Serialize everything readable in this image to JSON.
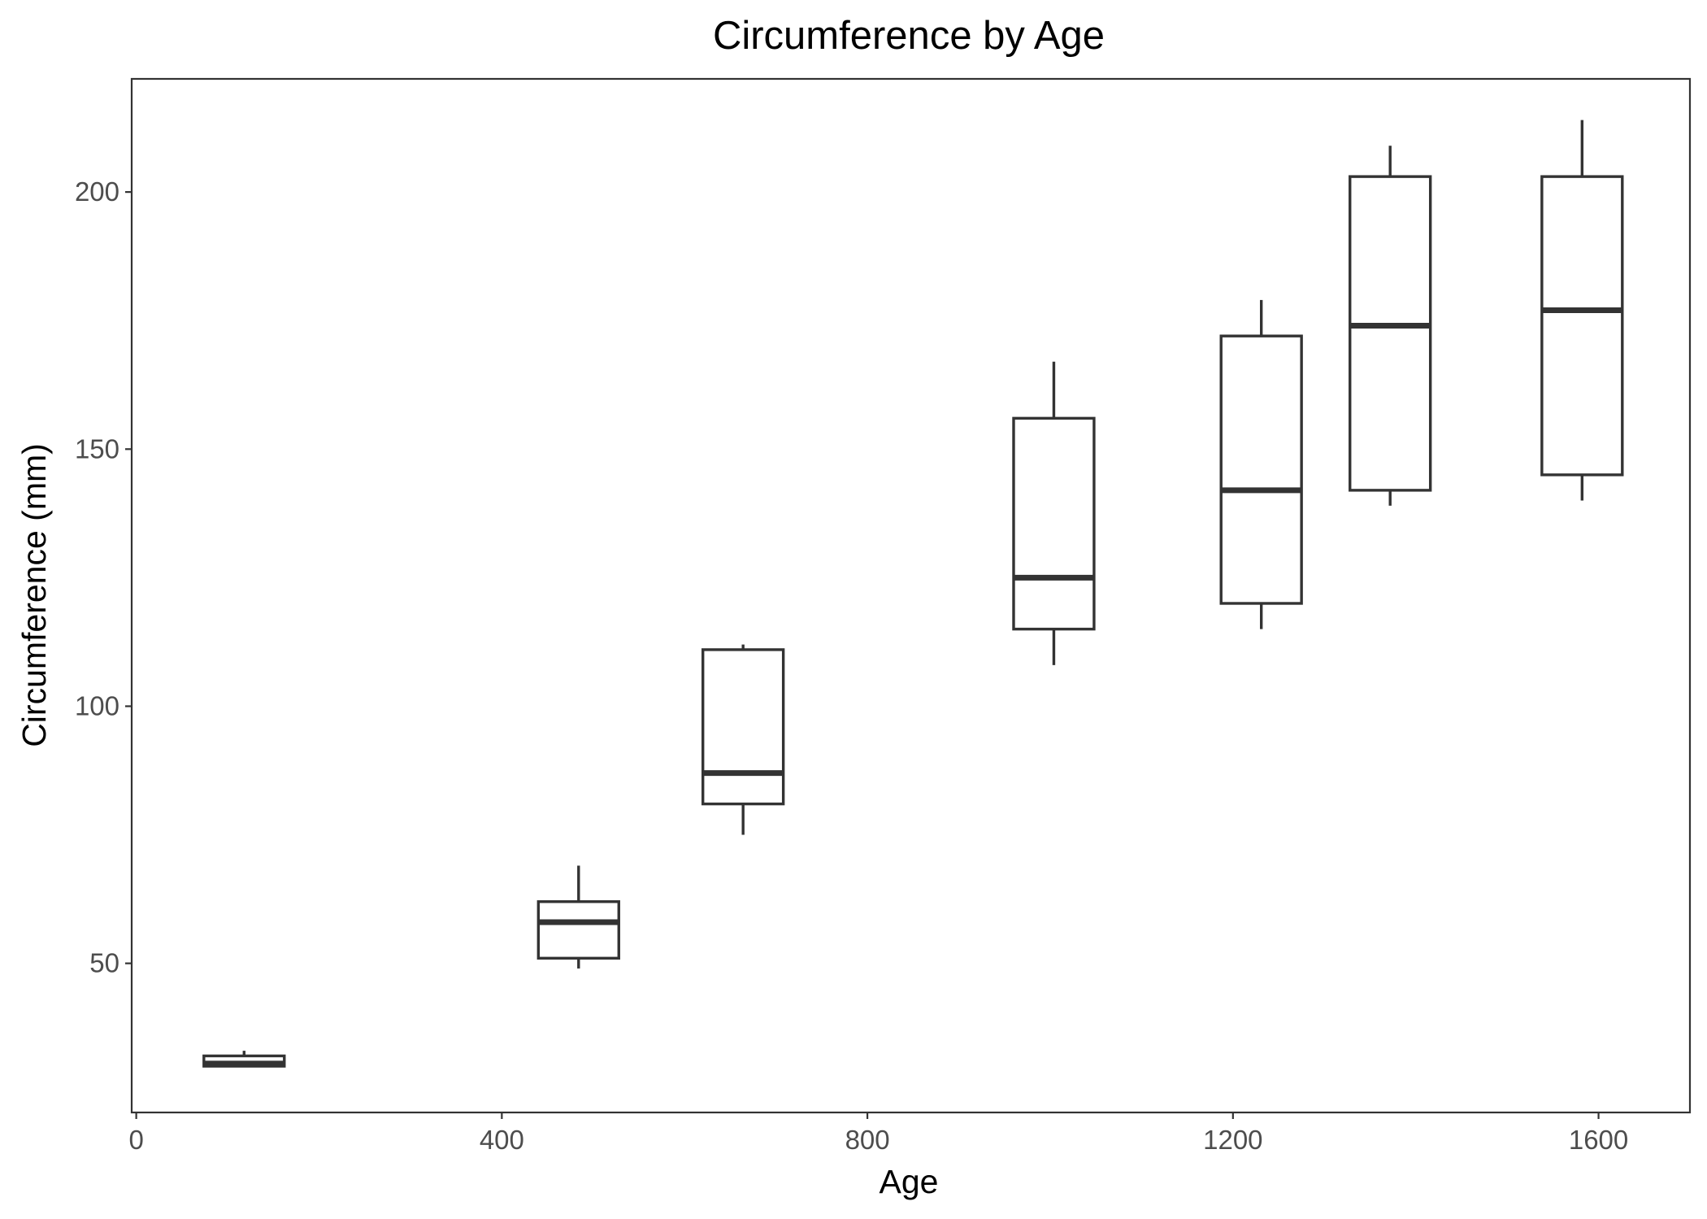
{
  "chart_data": {
    "type": "boxplot",
    "title": "Circumference by Age",
    "xlabel": "Age",
    "ylabel": "Circumference (mm)",
    "xlim": [
      -5,
      1700
    ],
    "ylim": [
      21,
      222
    ],
    "x_ticks": [
      0,
      400,
      800,
      1200,
      1600
    ],
    "y_ticks": [
      50,
      100,
      150,
      200
    ],
    "grid": false,
    "legend": "none",
    "box_width": 88,
    "colors": {
      "line": "#333333",
      "fill": "#ffffff",
      "tick_label": "#4d4d4d"
    },
    "boxes": [
      {
        "age": 118,
        "min": 30,
        "q1": 30,
        "median": 30.5,
        "q3": 32,
        "max": 33
      },
      {
        "age": 484,
        "min": 49,
        "q1": 51,
        "median": 58,
        "q3": 62,
        "max": 69
      },
      {
        "age": 664,
        "min": 75,
        "q1": 81,
        "median": 87,
        "q3": 111,
        "max": 112
      },
      {
        "age": 1004,
        "min": 108,
        "q1": 115,
        "median": 125,
        "q3": 156,
        "max": 167
      },
      {
        "age": 1231,
        "min": 115,
        "q1": 120,
        "median": 142,
        "q3": 172,
        "max": 179
      },
      {
        "age": 1372,
        "min": 139,
        "q1": 142,
        "median": 174,
        "q3": 203,
        "max": 209
      },
      {
        "age": 1582,
        "min": 140,
        "q1": 145,
        "median": 177,
        "q3": 203,
        "max": 214
      }
    ]
  }
}
